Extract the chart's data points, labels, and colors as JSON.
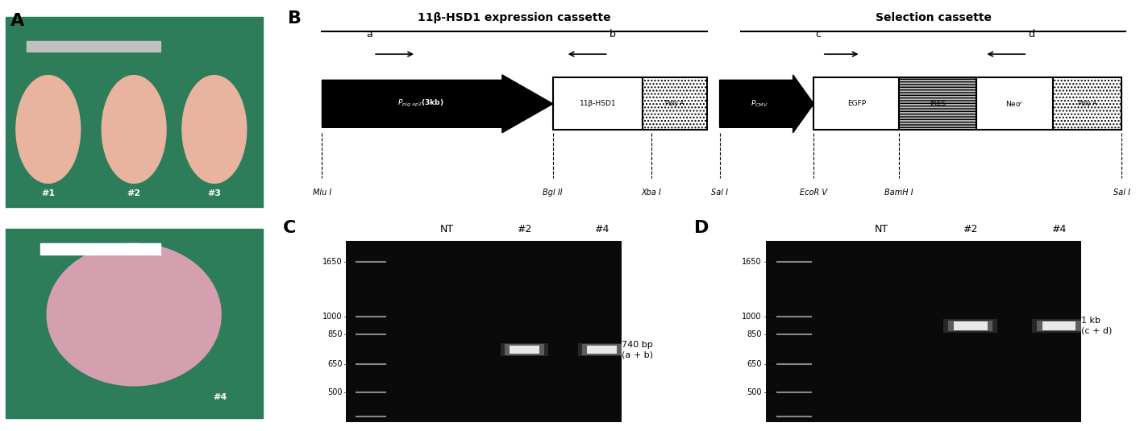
{
  "panel_A_label": "A",
  "panel_B_label": "B",
  "panel_C_label": "C",
  "panel_D_label": "D",
  "bg_color": "#ffffff",
  "panel_label_fontsize": 16,
  "panel_label_fontweight": "bold",
  "cassette_title1": "11β-HSD1 expression cassette",
  "cassette_title2": "Selection cassette",
  "cassette_title_fontsize": 10,
  "cassette_title_fontweight": "bold",
  "gel_bg": "#0a0a0a",
  "gel_band_color_bright": "#e8e8e8",
  "ladder_color": "#888888",
  "gel_C_bp_markers": [
    1650,
    1000,
    850,
    650,
    500
  ],
  "gel_D_bp_markers": [
    1650,
    1000,
    850,
    650,
    500
  ],
  "lane_label_fontsize": 9,
  "marker_fontsize": 7,
  "band_annotation_fontsize": 8
}
